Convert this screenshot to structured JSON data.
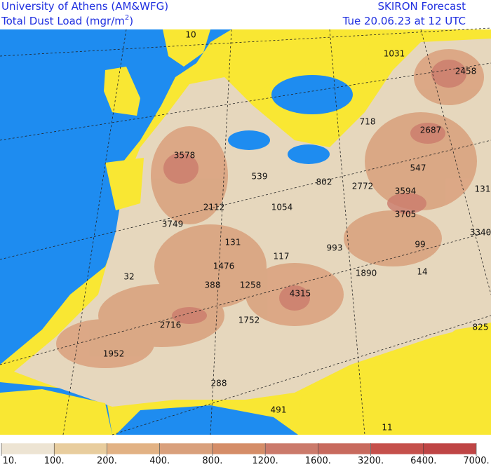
{
  "header": {
    "title": "University of Athens (AM&WFG)",
    "subtitle": "Total Dust Load (mgr/m",
    "subtitle_superscript": "2",
    "subtitle_end": ")",
    "product": "SKIRON Forecast",
    "valid_time": "Tue 20.06.23 at 12 UTC"
  },
  "map": {
    "labels": [
      10,
      1031,
      2458,
      718,
      2687,
      3578,
      547,
      539,
      802,
      2772,
      3594,
      131,
      2112,
      1054,
      3705,
      3749,
      3340,
      131,
      99,
      993,
      117,
      1476,
      1890,
      14,
      32,
      388,
      1258,
      4315,
      1752,
      2716,
      825,
      1952,
      288,
      491,
      11
    ]
  },
  "colorbar": {
    "levels": [
      {
        "value": 10,
        "label": "10."
      },
      {
        "value": 100,
        "label": "100."
      },
      {
        "value": 200,
        "label": "200."
      },
      {
        "value": 400,
        "label": "400."
      },
      {
        "value": 800,
        "label": "800."
      },
      {
        "value": 1200,
        "label": "1200."
      },
      {
        "value": 1600,
        "label": "1600."
      },
      {
        "value": 3200,
        "label": "3200."
      },
      {
        "value": 6400,
        "label": "6400."
      },
      {
        "value": 7000,
        "label": "7000."
      }
    ],
    "colors": [
      "#ede4d3",
      "#e8cd9e",
      "#e2b284",
      "#d9a07c",
      "#d58d68",
      "#cb7a6b",
      "#c86a5e",
      "#c5504b",
      "#bf4545"
    ]
  }
}
